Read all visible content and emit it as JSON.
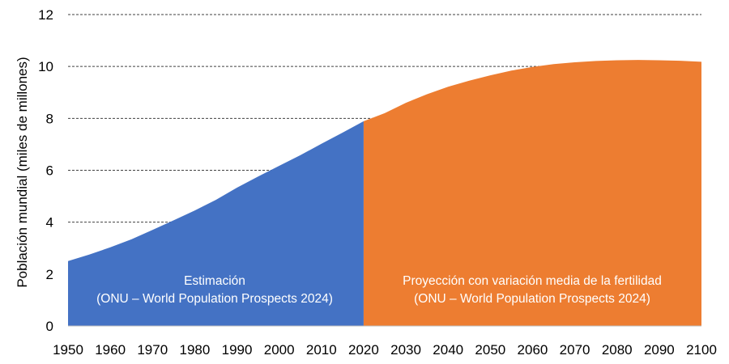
{
  "chart_data": {
    "type": "area",
    "title": "",
    "xlabel": "",
    "ylabel": "Población mundial (miles de millones)",
    "xlim": [
      1950,
      2100
    ],
    "ylim": [
      0,
      12
    ],
    "x_ticks": [
      "1950",
      "1960",
      "1970",
      "1980",
      "1990",
      "2000",
      "2010",
      "2020",
      "2030",
      "2040",
      "2050",
      "2060",
      "2070",
      "2080",
      "2090",
      "2100"
    ],
    "y_ticks": [
      "0",
      "2",
      "4",
      "6",
      "8",
      "10",
      "12"
    ],
    "grid": true,
    "series": [
      {
        "name": "Estimación",
        "color": "#4472C4",
        "x": [
          1950,
          1955,
          1960,
          1965,
          1970,
          1975,
          1980,
          1985,
          1990,
          1995,
          2000,
          2005,
          2010,
          2015,
          2020
        ],
        "values": [
          2.5,
          2.75,
          3.03,
          3.34,
          3.7,
          4.07,
          4.45,
          4.86,
          5.33,
          5.76,
          6.17,
          6.58,
          7.02,
          7.45,
          7.89
        ]
      },
      {
        "name": "Proyección con variación media de la fertilidad",
        "color": "#ED7D31",
        "x": [
          2020,
          2025,
          2030,
          2035,
          2040,
          2045,
          2050,
          2055,
          2060,
          2065,
          2070,
          2075,
          2080,
          2085,
          2090,
          2095,
          2100
        ],
        "values": [
          7.89,
          8.2,
          8.6,
          8.93,
          9.22,
          9.45,
          9.66,
          9.84,
          9.98,
          10.09,
          10.16,
          10.21,
          10.24,
          10.25,
          10.24,
          10.22,
          10.18
        ]
      }
    ],
    "annotations": [
      {
        "line1": "Estimación",
        "line2": "(ONU – World Population Prospects 2024)"
      },
      {
        "line1": "Proyección con variación media de la fertilidad",
        "line2": "(ONU – World Population Prospects 2024)"
      }
    ]
  }
}
